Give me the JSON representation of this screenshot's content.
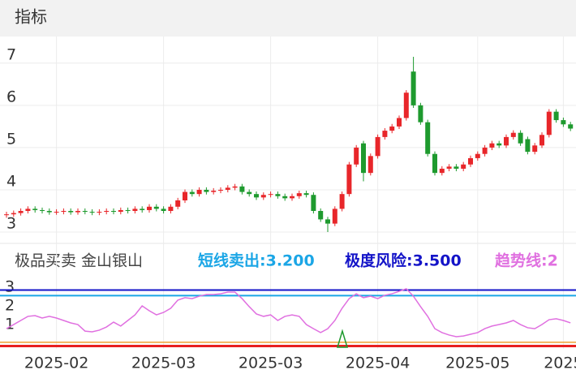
{
  "header": {
    "title": "指标"
  },
  "chart_data": [
    {
      "type": "candlestick",
      "categories": [
        null,
        null,
        null,
        null,
        null,
        null,
        null,
        "2025-02",
        null,
        null,
        null,
        null,
        null,
        null,
        null,
        null,
        null,
        null,
        null,
        null,
        null,
        null,
        "2025-03",
        null,
        null,
        null,
        null,
        null,
        null,
        null,
        null,
        null,
        null,
        null,
        null,
        null,
        null,
        "2025-03",
        null,
        null,
        null,
        null,
        null,
        null,
        null,
        null,
        null,
        null,
        null,
        null,
        null,
        null,
        "2025-04",
        null,
        null,
        null,
        null,
        null,
        null,
        null,
        null,
        null,
        null,
        null,
        null,
        null,
        "2025-05",
        null,
        null,
        null,
        null,
        null,
        null,
        null,
        null,
        null,
        null,
        null,
        "2025",
        null
      ],
      "open": [
        3.4,
        3.42,
        3.45,
        3.5,
        3.55,
        3.52,
        3.5,
        3.47,
        3.48,
        3.5,
        3.47,
        3.5,
        3.48,
        3.46,
        3.48,
        3.5,
        3.48,
        3.52,
        3.5,
        3.55,
        3.52,
        3.6,
        3.55,
        3.5,
        3.6,
        3.75,
        3.95,
        3.9,
        4.0,
        3.95,
        3.98,
        4.0,
        4.05,
        4.08,
        3.95,
        3.9,
        3.82,
        3.88,
        3.9,
        3.85,
        3.8,
        3.85,
        3.92,
        3.88,
        3.5,
        3.3,
        3.2,
        3.55,
        3.9,
        4.6,
        5.1,
        4.4,
        4.8,
        5.25,
        5.4,
        5.5,
        5.7,
        6.8,
        6.0,
        5.6,
        4.85,
        4.4,
        4.5,
        4.55,
        4.5,
        4.6,
        4.75,
        4.85,
        5.0,
        5.1,
        5.05,
        5.25,
        5.35,
        5.2,
        4.9,
        5.05,
        5.3,
        5.85,
        5.65,
        5.55
      ],
      "close": [
        3.42,
        3.45,
        3.5,
        3.55,
        3.52,
        3.5,
        3.47,
        3.48,
        3.5,
        3.47,
        3.5,
        3.48,
        3.46,
        3.48,
        3.5,
        3.48,
        3.52,
        3.5,
        3.55,
        3.52,
        3.6,
        3.55,
        3.5,
        3.6,
        3.75,
        3.95,
        3.9,
        4.0,
        3.95,
        3.98,
        4.0,
        4.05,
        4.08,
        3.95,
        3.9,
        3.82,
        3.88,
        3.9,
        3.85,
        3.8,
        3.85,
        3.92,
        3.88,
        3.5,
        3.3,
        3.2,
        3.55,
        3.9,
        4.6,
        5.0,
        4.4,
        4.8,
        5.25,
        5.4,
        5.5,
        5.7,
        6.3,
        6.0,
        5.6,
        4.85,
        4.4,
        4.5,
        4.55,
        4.5,
        4.6,
        4.75,
        4.85,
        5.0,
        5.1,
        5.05,
        5.25,
        5.35,
        5.1,
        4.9,
        5.05,
        5.3,
        5.85,
        5.65,
        5.55,
        5.45
      ],
      "high": [
        3.48,
        3.51,
        3.56,
        3.61,
        3.61,
        3.58,
        3.56,
        3.54,
        3.56,
        3.56,
        3.56,
        3.56,
        3.54,
        3.54,
        3.56,
        3.56,
        3.58,
        3.58,
        3.61,
        3.61,
        3.66,
        3.66,
        3.61,
        3.66,
        3.81,
        4.01,
        4.01,
        4.06,
        4.06,
        4.04,
        4.06,
        4.11,
        4.14,
        4.14,
        4.01,
        3.96,
        3.94,
        3.96,
        3.96,
        3.91,
        3.91,
        3.98,
        3.98,
        3.94,
        3.56,
        3.36,
        3.61,
        3.96,
        4.66,
        5.06,
        5.16,
        4.86,
        5.31,
        5.46,
        5.56,
        5.76,
        6.36,
        7.15,
        6.06,
        5.66,
        4.91,
        4.56,
        4.61,
        4.61,
        4.66,
        4.81,
        4.91,
        5.06,
        5.16,
        5.16,
        5.31,
        5.41,
        5.41,
        5.26,
        5.11,
        5.36,
        5.91,
        5.91,
        5.71,
        5.61
      ],
      "low": [
        3.34,
        3.36,
        3.39,
        3.44,
        3.46,
        3.44,
        3.41,
        3.41,
        3.42,
        3.41,
        3.41,
        3.42,
        3.4,
        3.4,
        3.42,
        3.42,
        3.42,
        3.44,
        3.44,
        3.46,
        3.46,
        3.49,
        3.44,
        3.44,
        3.54,
        3.69,
        3.84,
        3.84,
        3.89,
        3.89,
        3.92,
        3.94,
        3.99,
        3.89,
        3.84,
        3.76,
        3.76,
        3.82,
        3.79,
        3.74,
        3.74,
        3.79,
        3.82,
        3.44,
        3.24,
        3.0,
        3.14,
        3.49,
        3.84,
        4.54,
        4.2,
        4.34,
        4.74,
        5.19,
        5.34,
        5.44,
        5.64,
        5.94,
        5.54,
        4.79,
        4.34,
        4.34,
        4.44,
        4.44,
        4.44,
        4.54,
        4.69,
        4.79,
        4.94,
        4.99,
        4.99,
        5.19,
        5.04,
        4.84,
        4.84,
        4.99,
        5.24,
        5.59,
        5.49,
        5.39
      ],
      "up_color": "#e8262a",
      "down_color": "#1e9a2e",
      "ylim": [
        2.77,
        7.63
      ],
      "yticks": [
        3,
        4,
        5,
        6,
        7
      ],
      "grid": true
    },
    {
      "type": "indicator",
      "title": "极品买卖 金山银山",
      "lines": [
        {
          "label": "短线卖出:3.200",
          "value": 3.2,
          "color": "#1ba6e6"
        },
        {
          "label": "极度风险:3.500",
          "value": 3.5,
          "color": "#1414c8"
        }
      ],
      "levels": [
        {
          "value": 0.7,
          "color": "#f0a030"
        },
        {
          "value": 0.5,
          "color": "#e82020"
        }
      ],
      "series": [
        {
          "name": "趋势线:2",
          "color": "#e070e0",
          "values": [
            1.43,
            1.65,
            1.87,
            2.09,
            2.13,
            2.0,
            2.09,
            2.0,
            1.87,
            1.74,
            1.65,
            1.3,
            1.26,
            1.35,
            1.52,
            1.78,
            1.57,
            1.87,
            2.17,
            2.65,
            2.39,
            2.17,
            2.3,
            2.52,
            2.96,
            3.09,
            3.04,
            3.17,
            3.26,
            3.26,
            3.3,
            3.39,
            3.39,
            3.04,
            2.61,
            2.22,
            2.09,
            2.17,
            1.87,
            2.09,
            2.17,
            2.09,
            1.65,
            1.43,
            1.22,
            1.43,
            1.87,
            2.52,
            3.04,
            3.3,
            3.09,
            3.17,
            3.04,
            3.22,
            3.3,
            3.43,
            3.57,
            3.17,
            2.61,
            2.09,
            1.43,
            1.22,
            1.09,
            1.0,
            1.04,
            1.13,
            1.22,
            1.43,
            1.57,
            1.65,
            1.74,
            1.87,
            1.65,
            1.48,
            1.43,
            1.65,
            1.91,
            1.96,
            1.87,
            1.74
          ]
        }
      ],
      "ylim": [
        0,
        4.26
      ],
      "yticks": [
        3,
        2,
        1
      ]
    }
  ]
}
